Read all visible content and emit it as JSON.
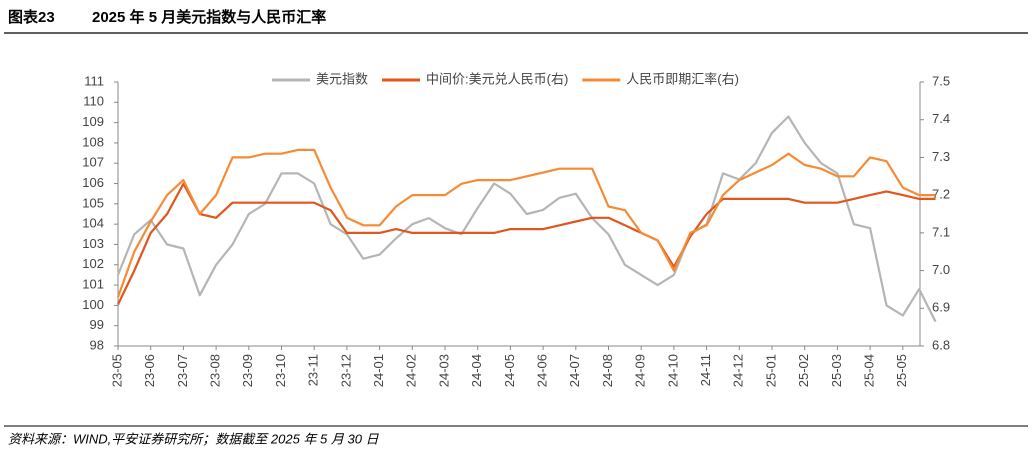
{
  "header": {
    "label": "图表23",
    "title": "2025 年 5 月美元指数与人民币汇率"
  },
  "chart_data": {
    "type": "line",
    "categories": [
      "23-05",
      null,
      "23-06",
      null,
      "23-07",
      null,
      "23-08",
      null,
      "23-09",
      null,
      "23-10",
      null,
      "23-11",
      null,
      "23-12",
      null,
      "24-01",
      null,
      "24-02",
      null,
      "24-03",
      null,
      "24-04",
      null,
      "24-05",
      null,
      "24-06",
      null,
      "24-07",
      null,
      "24-08",
      null,
      "24-09",
      null,
      "24-10",
      null,
      "24-11",
      null,
      "24-12",
      null,
      "25-01",
      null,
      "25-02",
      null,
      "25-03",
      null,
      "25-04",
      null,
      "25-05",
      null,
      null
    ],
    "series": [
      {
        "name": "美元指数",
        "color": "#b5b5b5",
        "axis": "y",
        "values": [
          101.5,
          103.5,
          104.2,
          103,
          102.8,
          100.5,
          102,
          103,
          104.5,
          105,
          106.5,
          106.5,
          106,
          104,
          103.5,
          102.3,
          102.5,
          103.3,
          104,
          104.3,
          103.8,
          103.5,
          104.8,
          106,
          105.5,
          104.5,
          104.7,
          105.3,
          105.5,
          104.3,
          103.5,
          102,
          101.5,
          101,
          101.5,
          103.5,
          104,
          106.5,
          106.2,
          107,
          108.5,
          109.3,
          108,
          107,
          106.5,
          104,
          103.8,
          100,
          99.5,
          100.8,
          99.2
        ]
      },
      {
        "name": "中间价:美元兑人民币(右)",
        "color": "#e0561c",
        "axis": "y2",
        "values": [
          6.91,
          7.0,
          7.1,
          7.15,
          7.23,
          7.15,
          7.14,
          7.18,
          7.18,
          7.18,
          7.18,
          7.18,
          7.18,
          7.16,
          7.1,
          7.1,
          7.1,
          7.11,
          7.1,
          7.1,
          7.1,
          7.1,
          7.1,
          7.1,
          7.11,
          7.11,
          7.11,
          7.12,
          7.13,
          7.14,
          7.14,
          7.12,
          7.1,
          7.08,
          7.01,
          7.09,
          7.15,
          7.19,
          7.19,
          7.19,
          7.19,
          7.19,
          7.18,
          7.18,
          7.18,
          7.19,
          7.2,
          7.21,
          7.2,
          7.19,
          7.19
        ]
      },
      {
        "name": "人民币即期汇率(右)",
        "color": "#f58b34",
        "axis": "y2",
        "values": [
          6.93,
          7.05,
          7.13,
          7.2,
          7.24,
          7.15,
          7.2,
          7.3,
          7.3,
          7.31,
          7.31,
          7.32,
          7.32,
          7.22,
          7.14,
          7.12,
          7.12,
          7.17,
          7.2,
          7.2,
          7.2,
          7.23,
          7.24,
          7.24,
          7.24,
          7.25,
          7.26,
          7.27,
          7.27,
          7.27,
          7.17,
          7.16,
          7.1,
          7.08,
          7.0,
          7.1,
          7.12,
          7.2,
          7.24,
          7.26,
          7.28,
          7.31,
          7.28,
          7.27,
          7.25,
          7.25,
          7.3,
          7.29,
          7.22,
          7.2,
          7.2
        ]
      }
    ],
    "ylim": [
      98,
      111
    ],
    "yticks": [
      98,
      99,
      100,
      101,
      102,
      103,
      104,
      105,
      106,
      107,
      108,
      109,
      110,
      111
    ],
    "y2lim": [
      6.8,
      7.5
    ],
    "y2ticks": [
      6.8,
      6.9,
      {
        "value": 7,
        "label": "7.0"
      },
      7.1,
      7.2,
      7.3,
      7.4,
      7.5
    ]
  },
  "footer": {
    "source": "资料来源：WIND,平安证券研究所；数据截至 2025 年 5 月 30 日"
  }
}
